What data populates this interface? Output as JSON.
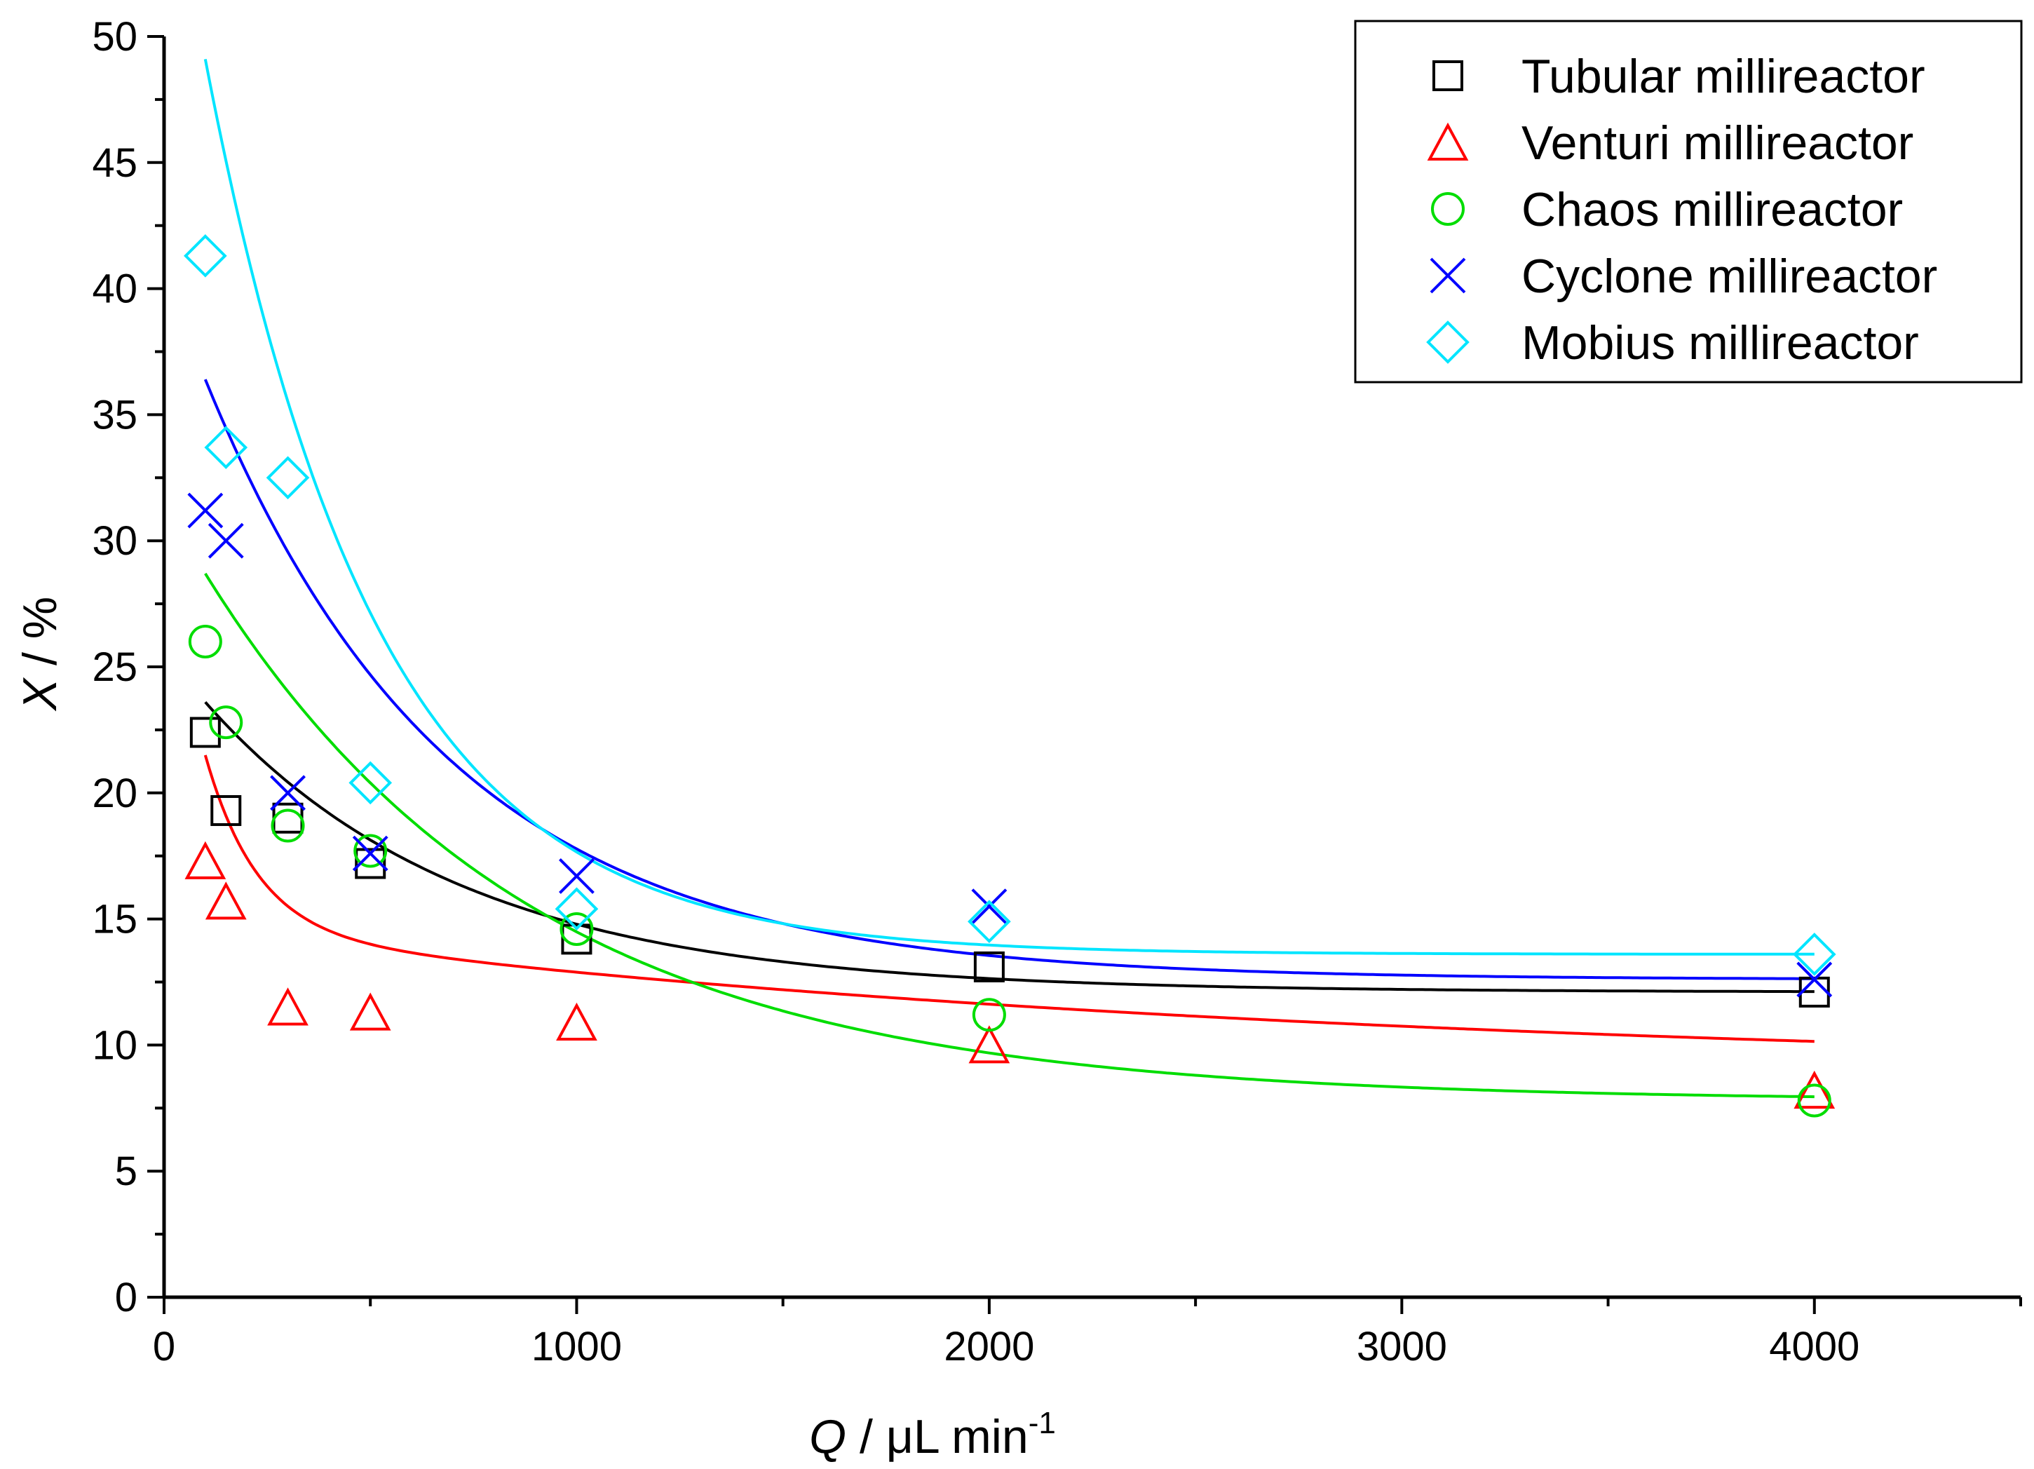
{
  "chart_data": {
    "type": "scatter",
    "title": "",
    "xlabel": {
      "var": "Q",
      "rest": " / μL min",
      "sup": "-1"
    },
    "ylabel": {
      "var": "X",
      "rest": " / %"
    },
    "xlim": [
      0,
      4500
    ],
    "ylim": [
      0,
      50
    ],
    "x_ticks": [
      0,
      1000,
      2000,
      3000,
      4000
    ],
    "x_tick_labels": [
      "0",
      "1000",
      "2000",
      "3000",
      "4000"
    ],
    "x_minor_ticks": [
      500,
      1500,
      2500,
      3500,
      4500
    ],
    "y_ticks": [
      0,
      5,
      10,
      15,
      20,
      25,
      30,
      35,
      40,
      45,
      50
    ],
    "y_tick_labels": [
      "0",
      "5",
      "10",
      "15",
      "20",
      "25",
      "30",
      "35",
      "40",
      "45",
      "50"
    ],
    "y_minor_ticks": [
      2.5,
      7.5,
      12.5,
      17.5,
      22.5,
      27.5,
      32.5,
      37.5,
      42.5,
      47.5
    ],
    "grid": false,
    "legend_position": "top-right",
    "series": [
      {
        "name": "Tubular millireactor",
        "marker": "square",
        "color": "#000000",
        "x": [
          100,
          150,
          300,
          500,
          1000,
          2000,
          4000
        ],
        "y": [
          22.4,
          19.3,
          19.0,
          17.2,
          14.2,
          13.1,
          12.1
        ],
        "fit": {
          "plateau": 12.1,
          "amplitude": 11.5,
          "decay": 620
        }
      },
      {
        "name": "Venturi millireactor",
        "marker": "triangle",
        "color": "#ff0000",
        "x": [
          100,
          150,
          300,
          500,
          1000,
          2000,
          4000
        ],
        "y": [
          17.3,
          15.7,
          11.5,
          11.3,
          10.9,
          10.0,
          8.2
        ],
        "fit": {
          "plateau": 8.8,
          "amplitude": 5.7,
          "decay": 2700,
          "fast_amplitude": 7.0,
          "fast_decay": 125
        }
      },
      {
        "name": "Chaos millireactor",
        "marker": "circle",
        "color": "#00dd00",
        "x": [
          100,
          150,
          300,
          500,
          1000,
          2000,
          4000
        ],
        "y": [
          26.0,
          22.8,
          18.7,
          17.7,
          14.6,
          11.2,
          7.8
        ],
        "fit": {
          "plateau": 7.8,
          "amplitude": 20.9,
          "decay": 790
        }
      },
      {
        "name": "Cyclone millireactor",
        "marker": "cross",
        "color": "#0000ff",
        "x": [
          100,
          150,
          300,
          500,
          1000,
          2000,
          4000
        ],
        "y": [
          31.2,
          30.0,
          20.0,
          17.6,
          16.7,
          15.5,
          12.6
        ],
        "fit": {
          "plateau": 12.6,
          "amplitude": 23.8,
          "decay": 590
        }
      },
      {
        "name": "Mobius millireactor",
        "marker": "diamond",
        "color": "#00e5ff",
        "x": [
          100,
          150,
          300,
          500,
          1000,
          2000,
          4000
        ],
        "y": [
          41.3,
          33.7,
          32.5,
          20.4,
          15.4,
          14.9,
          13.6
        ],
        "fit": {
          "plateau": 13.6,
          "amplitude": 35.5,
          "decay": 415
        }
      }
    ]
  }
}
